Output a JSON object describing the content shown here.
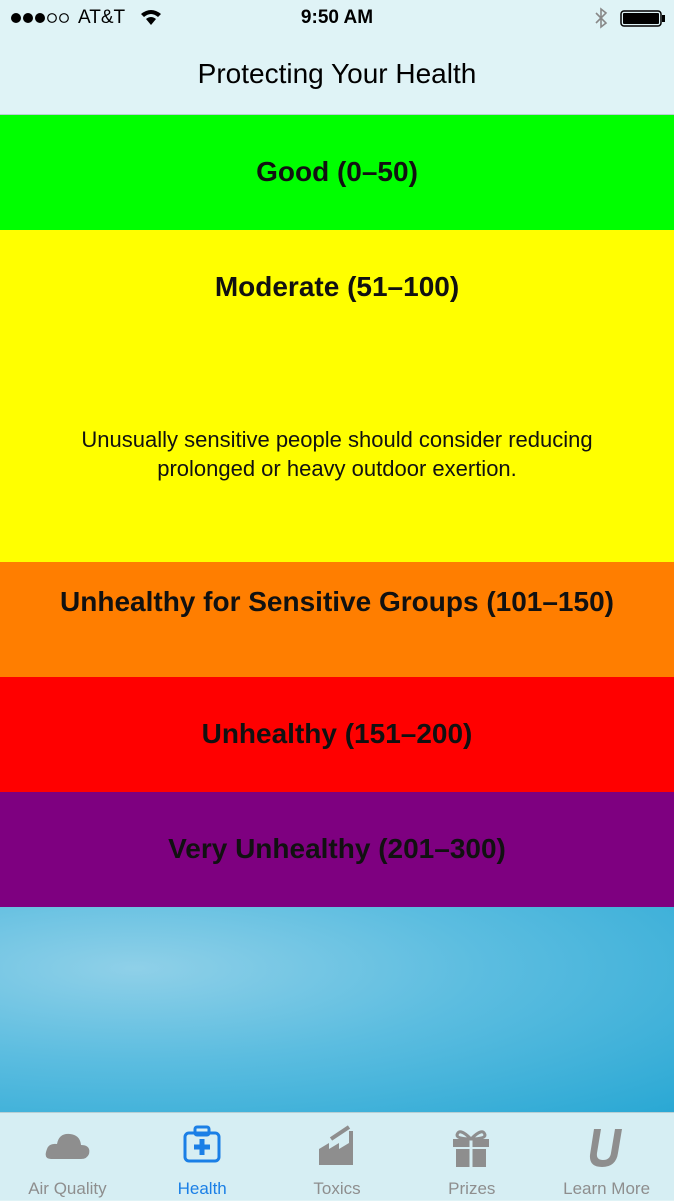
{
  "status_bar": {
    "carrier": "AT&T",
    "time": "9:50 AM"
  },
  "header": {
    "title": "Protecting Your Health"
  },
  "levels": [
    {
      "label": "Good (0–50)",
      "color": "#00ff00"
    },
    {
      "label": "Moderate (51–100)",
      "color": "#ffff00",
      "description": "Unusually sensitive people should consider reducing prolonged or heavy outdoor exertion."
    },
    {
      "label": "Unhealthy for Sensitive Groups (101–150)",
      "color": "#ff7e00"
    },
    {
      "label": "Unhealthy (151–200)",
      "color": "#ff0000"
    },
    {
      "label": "Very Unhealthy (201–300)",
      "color": "#7e0080"
    }
  ],
  "tab_bar": {
    "tabs": [
      "Air Quality",
      "Health",
      "Toxics",
      "Prizes",
      "Learn More"
    ],
    "selected": 1
  }
}
